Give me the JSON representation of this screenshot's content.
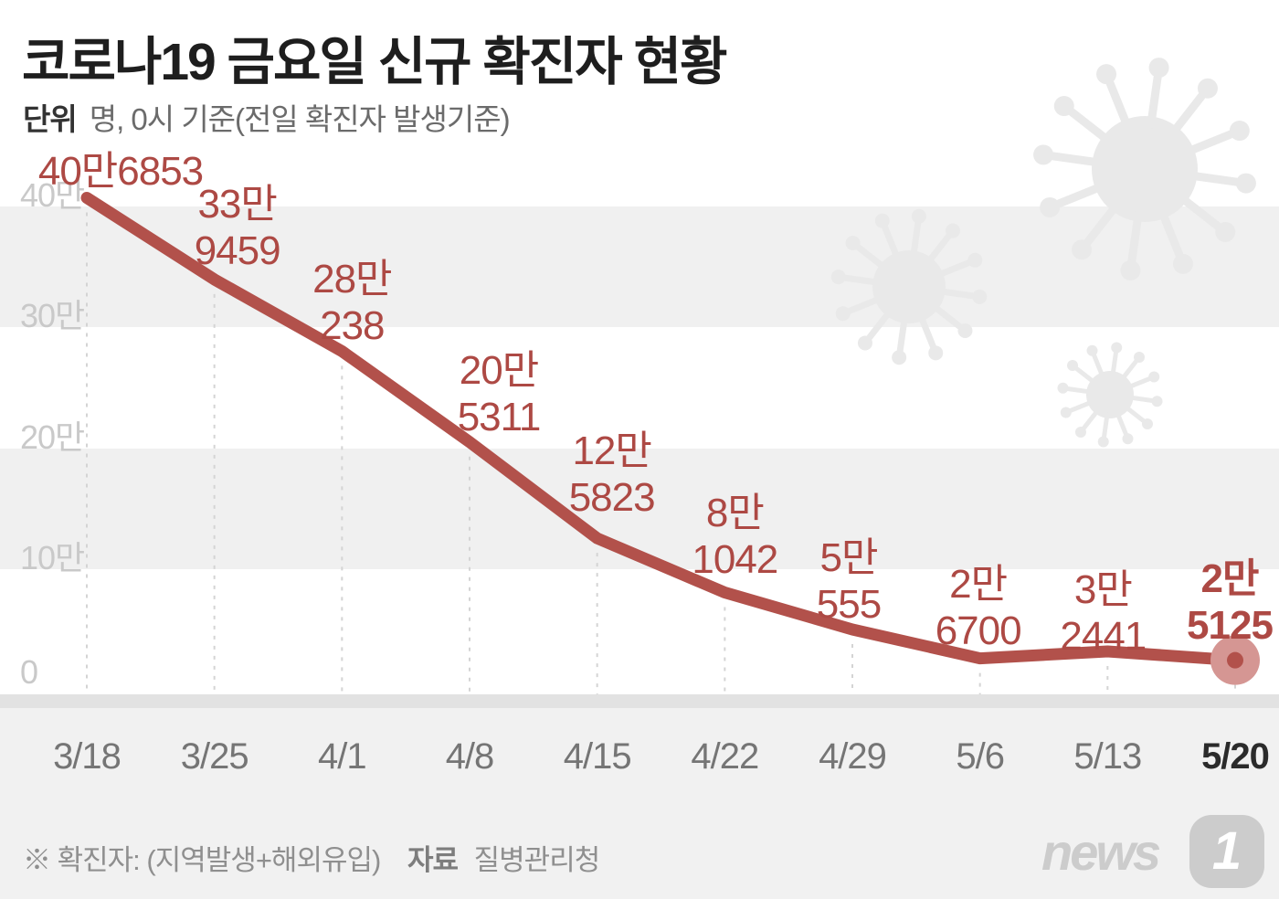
{
  "header": {
    "title": "코로나19 금요일 신규 확진자 현황",
    "unit_label": "단위",
    "unit_text": "명, 0시 기준(전일 확진자 발생기준)"
  },
  "chart_data": {
    "type": "line",
    "title": "코로나19 금요일 신규 확진자 현황",
    "unit": "명 (persons), 0시 기준",
    "x_labels": [
      "3/18",
      "3/25",
      "4/1",
      "4/8",
      "4/15",
      "4/22",
      "4/29",
      "5/6",
      "5/13",
      "5/20"
    ],
    "values": [
      406853,
      339459,
      280238,
      205311,
      125823,
      81042,
      50555,
      26700,
      32441,
      25125
    ],
    "point_labels": [
      [
        "40만6853"
      ],
      [
        "33만",
        "9459"
      ],
      [
        "28만",
        "238"
      ],
      [
        "20만",
        "5311"
      ],
      [
        "12만",
        "5823"
      ],
      [
        "8만",
        "1042"
      ],
      [
        "5만",
        "555"
      ],
      [
        "2만",
        "6700"
      ],
      [
        "3만",
        "2441"
      ],
      [
        "2만",
        "5125"
      ]
    ],
    "y_ticks": [
      {
        "label": "40만",
        "value": 400000
      },
      {
        "label": "30만",
        "value": 300000
      },
      {
        "label": "20만",
        "value": 200000
      },
      {
        "label": "10만",
        "value": 100000
      },
      {
        "label": "0",
        "value": 0
      }
    ],
    "ylim": [
      0,
      430000
    ],
    "grid": "alternating-bands",
    "legend": "none",
    "highlight_index": 9,
    "colors": {
      "line": "#b2514b",
      "label": "#ad4944",
      "marker_halo": "#d59693",
      "band": "#f0f0f0",
      "dashed": "#d4d4d4",
      "watermark": "#e9e9e9"
    }
  },
  "footer": {
    "note_prefix": "※ 확진자:",
    "note_body": "(지역발생+해외유입)",
    "source_label": "자료",
    "source_name": "질병관리청",
    "logo_text": "news",
    "logo_number": "1"
  }
}
